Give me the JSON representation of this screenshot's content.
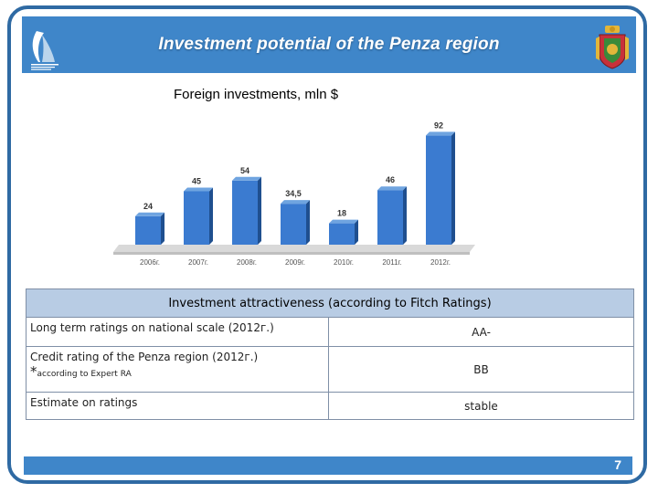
{
  "header": {
    "title": "Investment potential of the Penza region"
  },
  "chart_data": {
    "type": "bar",
    "title": "Foreign investments, mln $",
    "categories": [
      "2006г.",
      "2007г.",
      "2008г.",
      "2009г.",
      "2010г.",
      "2011г.",
      "2012г."
    ],
    "values": [
      24,
      45,
      54,
      34.5,
      18,
      46,
      92
    ],
    "value_labels": [
      "24",
      "45",
      "54",
      "34,5",
      "18",
      "46",
      "92"
    ],
    "ylim": [
      0,
      100
    ],
    "grid": false,
    "legend": "none",
    "bar_color": "#3b7bd0"
  },
  "table": {
    "heading": "Investment attractiveness (according to Fitch Ratings)",
    "rows": [
      {
        "label": "Long term ratings on national scale (2012г.)",
        "value": "AA-"
      },
      {
        "label": "Credit rating of the Penza region (2012г.)",
        "note_star": "*",
        "note": "according to Expert RA",
        "value": "BB"
      },
      {
        "label": "Estimate on ratings",
        "value": "stable"
      }
    ]
  },
  "footer": {
    "page_number": "7"
  }
}
